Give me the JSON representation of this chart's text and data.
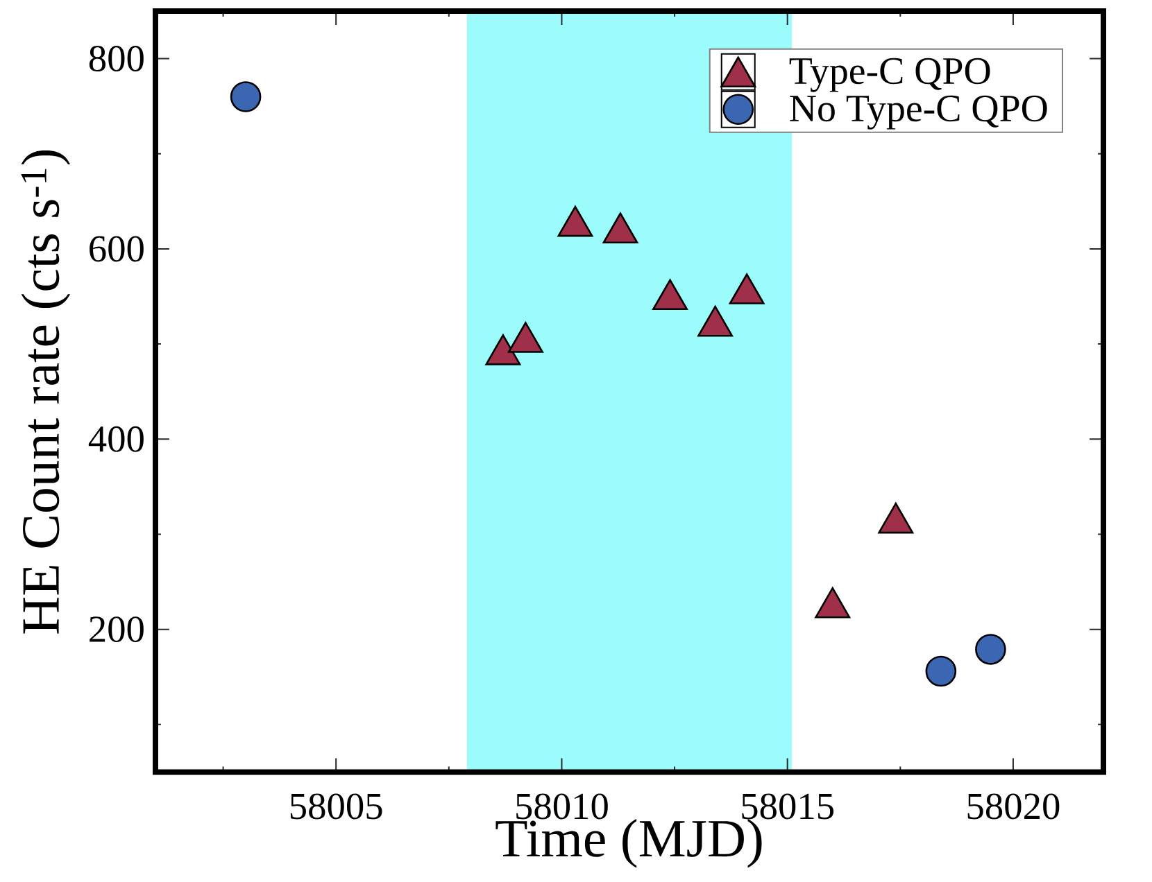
{
  "chart_data": {
    "type": "scatter",
    "xlabel": "Time (MJD)",
    "ylabel": "HE Count rate (cts s$^{-1}$)",
    "xlim": [
      58001,
      58022
    ],
    "ylim": [
      50,
      850
    ],
    "xticks": [
      {
        "value": 58002.5,
        "label": null
      },
      58005,
      {
        "value": 58007.5,
        "label": null
      },
      58010,
      {
        "value": 58012.5,
        "label": null
      },
      58015,
      {
        "value": 58017.5,
        "label": null
      },
      58020
    ],
    "yticks": [
      {
        "value": 100,
        "label": null
      },
      200,
      {
        "value": 300,
        "label": null
      },
      400,
      {
        "value": 500,
        "label": null
      },
      600,
      {
        "value": 700,
        "label": null
      },
      800
    ],
    "series": [
      {
        "name": "Type-C QPO",
        "color": "#a0304a",
        "marker": "triangle",
        "x": [
          58008.7,
          58009.2,
          58010.3,
          58011.3,
          58012.4,
          58013.4,
          58014.1,
          58016.0,
          58017.4
        ],
        "values": [
          494,
          507,
          629,
          622,
          552,
          524,
          558,
          228,
          317
        ]
      },
      {
        "name": "No Type-C QPO",
        "color": "#3a66b2",
        "marker": "circle",
        "x": [
          58003.0,
          58018.4,
          58019.5
        ],
        "values": [
          760,
          156,
          179
        ]
      }
    ],
    "bands": [
      {
        "axis": "x",
        "from": 58007.9,
        "to": 58015.1,
        "color": "#9cfcfc"
      }
    ],
    "legend": "top right"
  }
}
